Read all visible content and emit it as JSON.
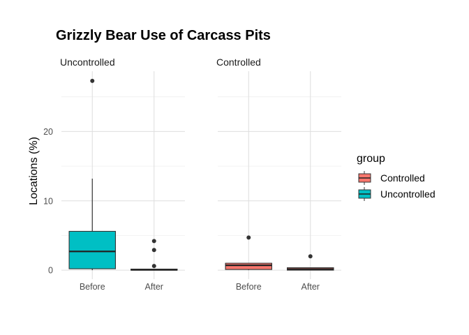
{
  "chart_data": {
    "type": "boxplot",
    "title": "Grizzly Bear Use of Carcass Pits",
    "ylabel": "Locations (%)",
    "xlabel": "",
    "ylim": [
      -1.3,
      28.7
    ],
    "y_ticks": [
      0,
      10,
      20
    ],
    "categories": [
      "Before",
      "After"
    ],
    "legend": {
      "title": "group",
      "placement": "right",
      "entries": [
        {
          "name": "Controlled",
          "color": "#F8766D"
        },
        {
          "name": "Uncontrolled",
          "color": "#00BFC4"
        }
      ]
    },
    "panels": [
      {
        "label": "Uncontrolled",
        "group": "Uncontrolled",
        "boxes": [
          {
            "x": "Before",
            "min": 0,
            "q1": 0.2,
            "median": 2.7,
            "q3": 5.6,
            "max": 13.2,
            "outliers": [
              27.3
            ]
          },
          {
            "x": "After",
            "min": 0,
            "q1": 0,
            "median": 0.05,
            "q3": 0.15,
            "max": 0.15,
            "outliers": [
              0.6,
              2.9,
              4.2
            ]
          }
        ]
      },
      {
        "label": "Controlled",
        "group": "Controlled",
        "boxes": [
          {
            "x": "Before",
            "min": 0,
            "q1": 0.1,
            "median": 0.7,
            "q3": 1.0,
            "max": 1.0,
            "outliers": [
              4.7
            ]
          },
          {
            "x": "After",
            "min": 0,
            "q1": 0,
            "median": 0.15,
            "q3": 0.35,
            "max": 0.35,
            "outliers": [
              2.0
            ]
          }
        ]
      }
    ]
  }
}
